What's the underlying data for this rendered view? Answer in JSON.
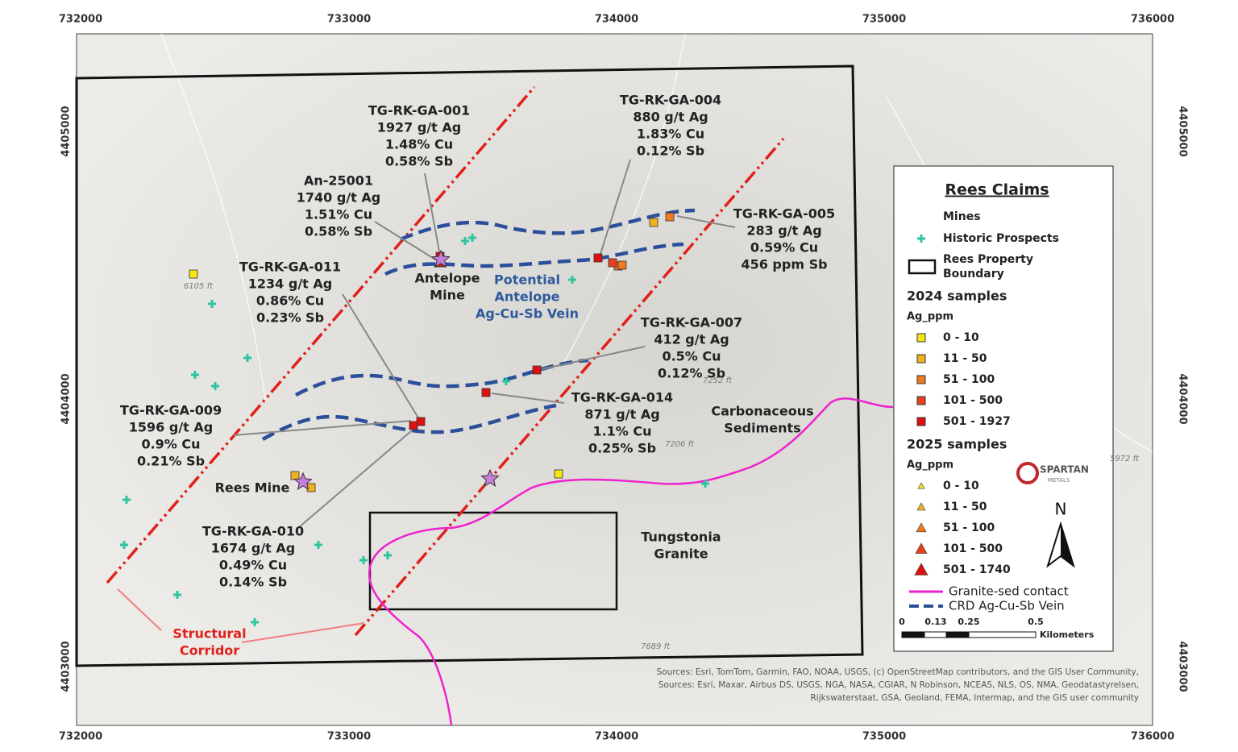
{
  "axis": {
    "x_labels": [
      "732000",
      "733000",
      "734000",
      "735000",
      "736000"
    ],
    "y_labels": [
      "4405000",
      "4404000",
      "4403000"
    ]
  },
  "callouts": [
    {
      "lines": [
        "TG-RK-GA-001",
        "1927 g/t Ag",
        "1.48% Cu",
        "0.58% Sb"
      ]
    },
    {
      "lines": [
        "TG-RK-GA-004",
        "880 g/t Ag",
        "1.83% Cu",
        "0.12% Sb"
      ]
    },
    {
      "lines": [
        "An-25001",
        "1740 g/t Ag",
        "1.51% Cu",
        "0.58% Sb"
      ]
    },
    {
      "lines": [
        "TG-RK-GA-005",
        "283 g/t Ag",
        "0.59% Cu",
        "456 ppm Sb"
      ]
    },
    {
      "lines": [
        "TG-RK-GA-011",
        "1234 g/t Ag",
        "0.86% Cu",
        "0.23% Sb"
      ]
    },
    {
      "lines": [
        "TG-RK-GA-007",
        "412 g/t Ag",
        "0.5% Cu",
        "0.12% Sb"
      ]
    },
    {
      "lines": [
        "TG-RK-GA-014",
        "871 g/t Ag",
        "1.1% Cu",
        "0.25% Sb"
      ]
    },
    {
      "lines": [
        "TG-RK-GA-009",
        "1596 g/t Ag",
        "0.9% Cu",
        "0.21% Sb"
      ]
    },
    {
      "lines": [
        "TG-RK-GA-010",
        "1674 g/t Ag",
        "0.49% Cu",
        "0.14% Sb"
      ]
    }
  ],
  "places": [
    {
      "lines": [
        "Antelope",
        "Mine"
      ]
    },
    {
      "lines": [
        "Potential",
        "Antelope",
        "Ag-Cu-Sb Vein"
      ]
    },
    {
      "lines": [
        "Rees Mine"
      ]
    },
    {
      "lines": [
        "Carbonaceous",
        "Sediments"
      ]
    },
    {
      "lines": [
        "Tungstonia",
        "Granite"
      ]
    },
    {
      "lines": [
        "Structural",
        "Corridor"
      ]
    }
  ],
  "elevations": [
    "6105 ft",
    "7252 ft",
    "7206 ft",
    "7689 ft",
    "5972 ft"
  ],
  "legend": {
    "title": "Rees Claims",
    "symbols": [
      "Mines",
      "Historic Prospects"
    ],
    "boundary": [
      "Rees Property",
      "Boundary"
    ],
    "samples": [
      {
        "title": "2024 samples",
        "field": "Ag_ppm",
        "classes": [
          "0 - 10",
          "11 - 50",
          "51 - 100",
          "101 - 500",
          "501 - 1927"
        ]
      },
      {
        "title": "2025 samples",
        "field": "Ag_ppm",
        "classes": [
          "0 - 10",
          "11 - 50",
          "51 - 100",
          "101 - 500",
          "501 - 1740"
        ]
      }
    ],
    "lines": [
      "Granite-sed contact",
      "CRD Ag-Cu-Sb Vein"
    ],
    "scale": {
      "ticks": [
        "0",
        "0.13",
        "0.25",
        "0.5"
      ],
      "unit": "Kilometers"
    },
    "logo": [
      "SPARTAN",
      "METALS"
    ],
    "north": "N"
  },
  "sources": [
    "Sources: Esri, TomTom, Garmin, FAO, NOAA, USGS, (c) OpenStreetMap contributors, and the GIS User Community,",
    "Sources: Esri, Maxar, Airbus DS, USGS, NGA, NASA, CGIAR, N Robinson, NCEAS, NLS, OS, NMA, Geodatastyrelsen,",
    "Rijkswaterstaat, GSA, Geoland, FEMA, Intermap, and the GIS user community"
  ]
}
